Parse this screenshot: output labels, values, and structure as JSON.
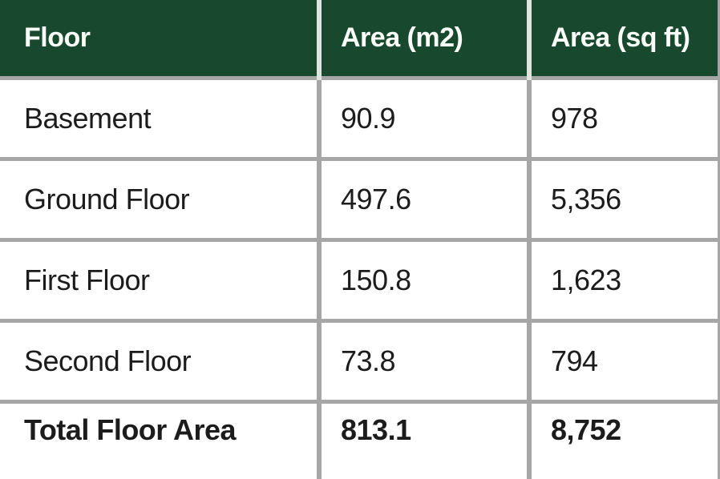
{
  "chart_data": {
    "type": "table",
    "title": "",
    "columns": [
      "Floor",
      "Area (m2)",
      "Area (sq ft)"
    ],
    "rows": [
      [
        "Basement",
        "90.9",
        "978"
      ],
      [
        "Ground Floor",
        "497.6",
        "5,356"
      ],
      [
        "First Floor",
        "150.8",
        "1,623"
      ],
      [
        "Second Floor",
        "73.8",
        "794"
      ],
      [
        "Total Floor Area",
        "813.1",
        "8,752"
      ]
    ]
  },
  "table": {
    "header": {
      "floor": "Floor",
      "area_m2": "Area (m2)",
      "area_sqft": "Area (sq ft)"
    },
    "rows": [
      {
        "floor": "Basement",
        "area_m2": "90.9",
        "area_sqft": "978"
      },
      {
        "floor": "Ground Floor",
        "area_m2": "497.6",
        "area_sqft": "5,356"
      },
      {
        "floor": "First Floor",
        "area_m2": "150.8",
        "area_sqft": "1,623"
      },
      {
        "floor": "Second Floor",
        "area_m2": "73.8",
        "area_sqft": "794"
      }
    ],
    "total": {
      "floor": "Total Floor Area",
      "area_m2": "813.1",
      "area_sqft": "8,752"
    }
  },
  "colors": {
    "header_bg": "#18492f",
    "header_text": "#fbfff9",
    "header_divider": "#dfe4df",
    "grid_line": "#a6a6a6",
    "cell_text": "#1c1c1c",
    "row_bg": "#ffffff"
  }
}
